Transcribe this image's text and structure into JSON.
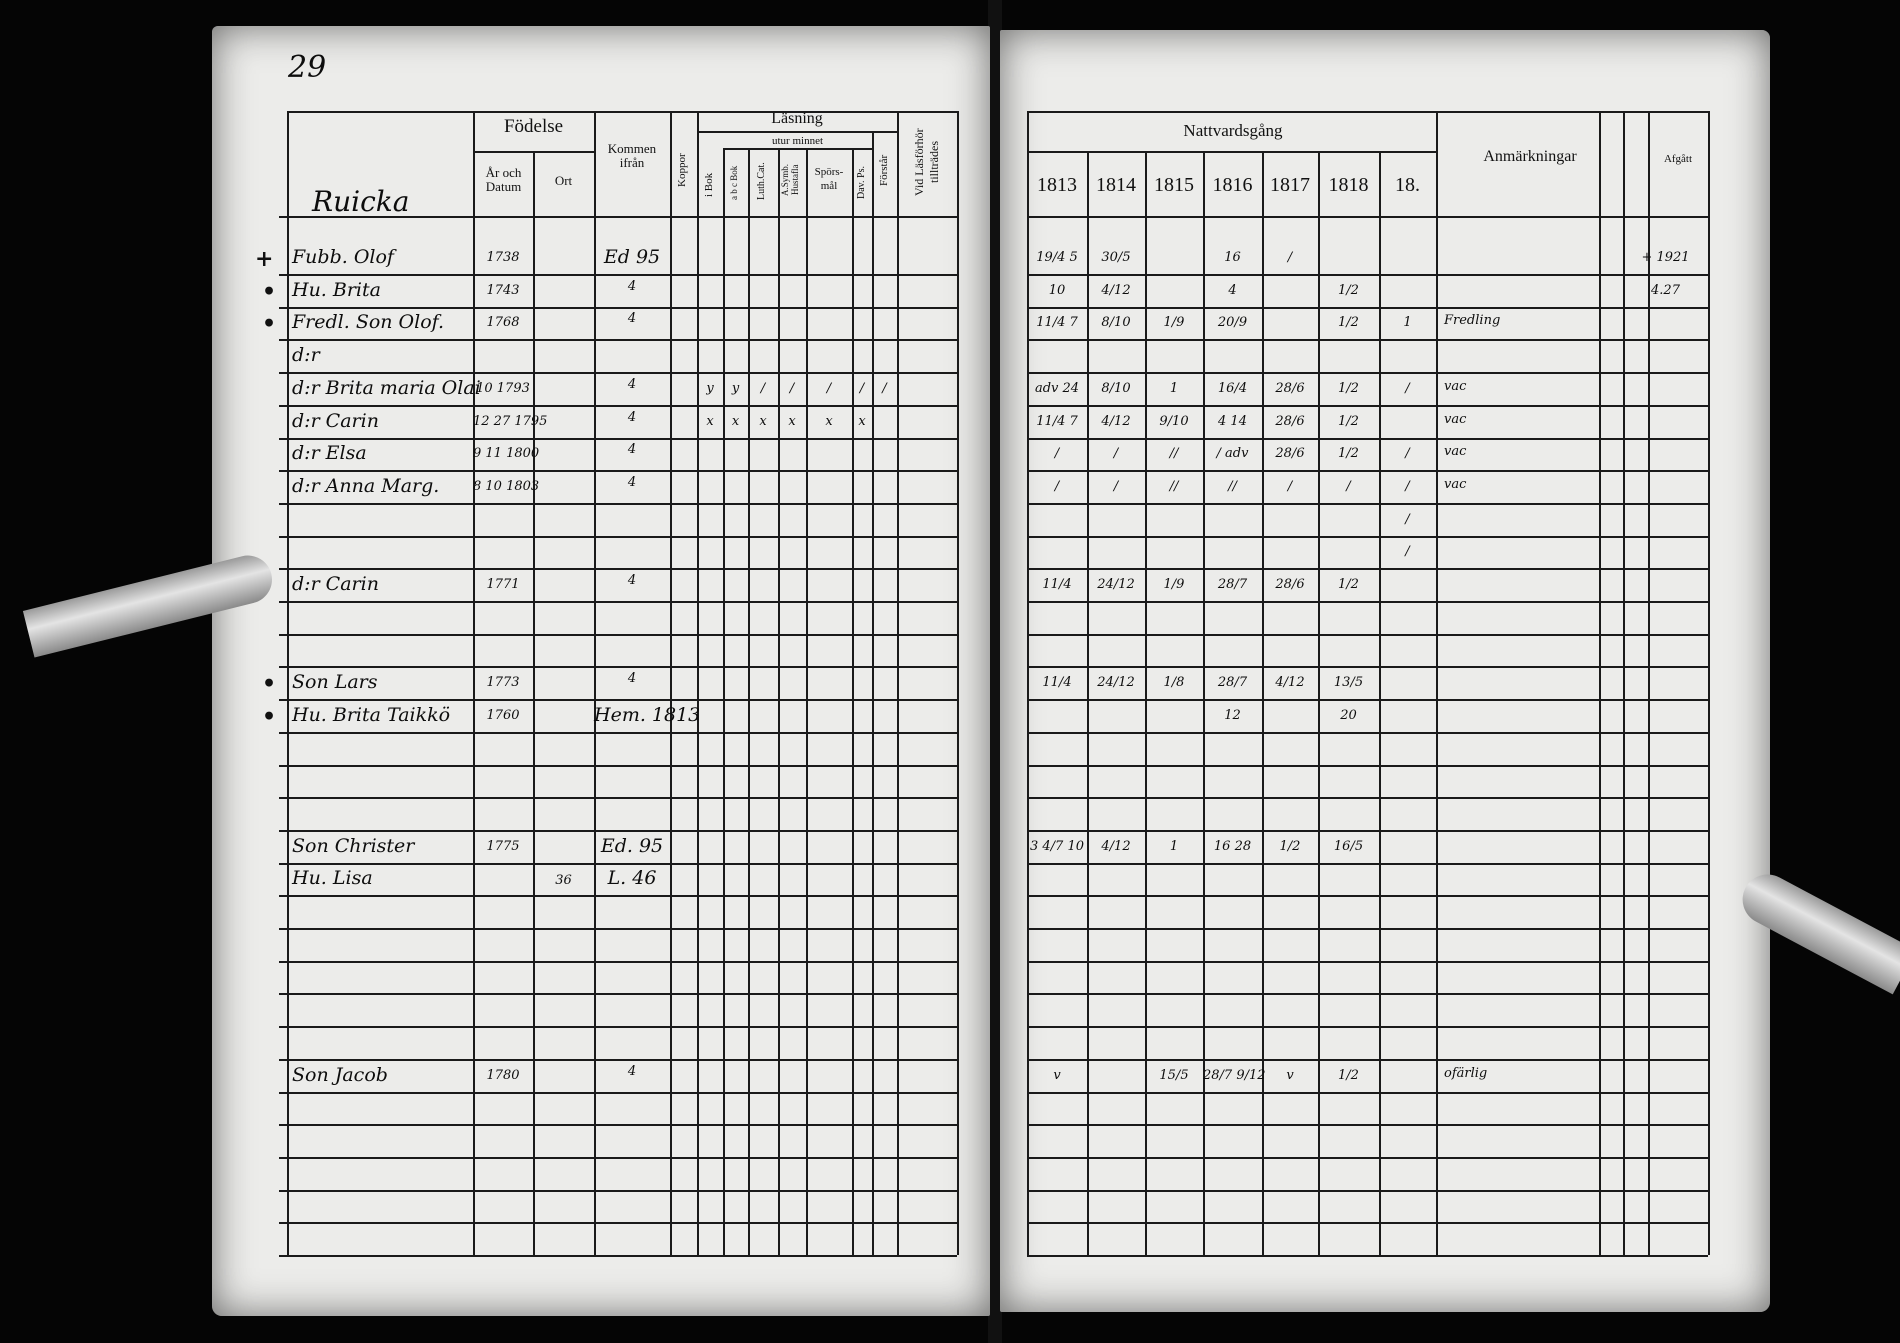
{
  "document": {
    "page_number": "29",
    "village": "Ruicka",
    "left_headers": {
      "name_col": "",
      "birth": "Födelse",
      "birth_year_date": "År och Datum",
      "birth_place": "Ort",
      "came_from": "Kommen ifrån",
      "smallpox": "Koppor",
      "reading": "Läsning",
      "by_heart": "utur minnet",
      "in_book": "i Bok",
      "abc_book": "a b c Bok",
      "catechism": "Luth.Cat.",
      "symbol": "A.Symb. Hustafla",
      "questions": "Spörs-mål",
      "psalms": "Dav. Ps.",
      "understanding": "Förstår",
      "admitted": "Vid Läsförhör tillträdes"
    },
    "right_headers": {
      "communion": "Nattvardsgång",
      "years": [
        "1813",
        "1814",
        "1815",
        "1816",
        "1817",
        "1818",
        "18."
      ],
      "remarks": "Anmärkningar",
      "departed": "Afgått"
    },
    "rows": [
      {
        "margin": "+",
        "name": "Fubb. Olof",
        "born": "1738",
        "place": "",
        "from": "Ed 95",
        "reading": [
          "",
          "",
          "",
          "",
          "",
          "",
          ""
        ],
        "communion": [
          "19/4 5",
          "30/5",
          "",
          "16",
          "/",
          "",
          ""
        ],
        "remarks": "",
        "departed": "+ 1921"
      },
      {
        "margin": "•",
        "name": "Hu. Brita",
        "born": "1743",
        "place": "",
        "from": "4",
        "reading": [
          "",
          "",
          "",
          "",
          "",
          "",
          ""
        ],
        "communion": [
          "10",
          "4/12",
          "",
          "4",
          "",
          "1/2",
          ""
        ],
        "remarks": "",
        "departed": "4.27"
      },
      {
        "margin": "•",
        "name": "Fredl. Son Olof.",
        "born": "1768",
        "place": "",
        "from": "4",
        "reading": [
          "",
          "",
          "",
          "",
          "",
          "",
          ""
        ],
        "communion": [
          "11/4 7",
          "8/10",
          "1/9",
          "20/9",
          "",
          "1/2",
          "1"
        ],
        "remarks": "Fredling",
        "departed": ""
      },
      {
        "margin": "",
        "name": "d:r",
        "born": "",
        "place": "",
        "from": "",
        "reading": [
          "",
          "",
          "",
          "",
          "",
          "",
          ""
        ],
        "communion": [
          "",
          "",
          "",
          "",
          "",
          "",
          ""
        ],
        "remarks": "",
        "departed": ""
      },
      {
        "margin": "",
        "name": "d:r Brita maria Olai",
        "born": "10 1793",
        "place": "",
        "from": "4",
        "reading": [
          "y",
          "y",
          "/",
          "/",
          "/",
          "/",
          "/"
        ],
        "communion": [
          "adv 24",
          "8/10",
          "1",
          "16/4",
          "28/6",
          "1/2",
          "/"
        ],
        "remarks": "vac",
        "departed": ""
      },
      {
        "margin": "",
        "name": "d:r Carin",
        "born": "12 27 1795",
        "place": "",
        "from": "4",
        "reading": [
          "x",
          "x",
          "x",
          "x",
          "x",
          "x",
          ""
        ],
        "communion": [
          "11/4 7",
          "4/12",
          "9/10",
          "4 14",
          "28/6",
          "1/2",
          ""
        ],
        "remarks": "vac",
        "departed": ""
      },
      {
        "margin": "",
        "name": "d:r Elsa",
        "born": "9 11 1800",
        "place": "",
        "from": "4",
        "reading": [
          "",
          "",
          "",
          "",
          "",
          "",
          ""
        ],
        "communion": [
          "/",
          "/",
          "//",
          "/ adv",
          "28/6",
          "1/2",
          "/"
        ],
        "remarks": "vac",
        "departed": ""
      },
      {
        "margin": "",
        "name": "d:r Anna Marg.",
        "born": "8 10 1803",
        "place": "",
        "from": "4",
        "reading": [
          "",
          "",
          "",
          "",
          "",
          "",
          ""
        ],
        "communion": [
          "/",
          "/",
          "//",
          "//",
          "/",
          "/",
          "/"
        ],
        "remarks": "vac",
        "departed": ""
      },
      {
        "margin": "",
        "name": "",
        "born": "",
        "place": "",
        "from": "",
        "reading": [
          "",
          "",
          "",
          "",
          "",
          "",
          ""
        ],
        "communion": [
          "",
          "",
          "",
          "",
          "",
          "",
          "/"
        ],
        "remarks": "",
        "departed": ""
      },
      {
        "margin": "",
        "name": "",
        "born": "",
        "place": "",
        "from": "",
        "reading": [
          "",
          "",
          "",
          "",
          "",
          "",
          ""
        ],
        "communion": [
          "",
          "",
          "",
          "",
          "",
          "",
          "/"
        ],
        "remarks": "",
        "departed": ""
      },
      {
        "margin": "",
        "name": "d:r Carin",
        "born": "1771",
        "place": "",
        "from": "4",
        "reading": [
          "",
          "",
          "",
          "",
          "",
          "",
          ""
        ],
        "communion": [
          "11/4",
          "24/12",
          "1/9",
          "28/7",
          "28/6",
          "1/2",
          ""
        ],
        "remarks": "",
        "departed": ""
      },
      {
        "margin": "",
        "name": "",
        "born": "",
        "place": "",
        "from": "",
        "reading": [
          "",
          "",
          "",
          "",
          "",
          "",
          ""
        ],
        "communion": [
          "",
          "",
          "",
          "",
          "",
          "",
          ""
        ],
        "remarks": "",
        "departed": ""
      },
      {
        "margin": "",
        "name": "",
        "born": "",
        "place": "",
        "from": "",
        "reading": [
          "",
          "",
          "",
          "",
          "",
          "",
          ""
        ],
        "communion": [
          "",
          "",
          "",
          "",
          "",
          "",
          ""
        ],
        "remarks": "",
        "departed": ""
      },
      {
        "margin": "•",
        "name": "Son Lars",
        "born": "1773",
        "place": "",
        "from": "4",
        "reading": [
          "",
          "",
          "",
          "",
          "",
          "",
          ""
        ],
        "communion": [
          "11/4",
          "24/12",
          "1/8",
          "28/7",
          "4/12",
          "13/5",
          ""
        ],
        "remarks": "",
        "departed": ""
      },
      {
        "margin": "•",
        "name": "Hu. Brita Taikkö",
        "born": "1760",
        "place": "",
        "from": "Hem. 1813",
        "reading": [
          "",
          "",
          "",
          "",
          "",
          "",
          ""
        ],
        "communion": [
          "",
          "",
          "",
          "12",
          "",
          "20",
          ""
        ],
        "remarks": "",
        "departed": ""
      },
      {
        "margin": "",
        "name": "",
        "born": "",
        "place": "",
        "from": "",
        "reading": [
          "",
          "",
          "",
          "",
          "",
          "",
          ""
        ],
        "communion": [
          "",
          "",
          "",
          "",
          "",
          "",
          ""
        ],
        "remarks": "",
        "departed": ""
      },
      {
        "margin": "",
        "name": "",
        "born": "",
        "place": "",
        "from": "",
        "reading": [
          "",
          "",
          "",
          "",
          "",
          "",
          ""
        ],
        "communion": [
          "",
          "",
          "",
          "",
          "",
          "",
          ""
        ],
        "remarks": "",
        "departed": ""
      },
      {
        "margin": "",
        "name": "",
        "born": "",
        "place": "",
        "from": "",
        "reading": [
          "",
          "",
          "",
          "",
          "",
          "",
          ""
        ],
        "communion": [
          "",
          "",
          "",
          "",
          "",
          "",
          ""
        ],
        "remarks": "",
        "departed": ""
      },
      {
        "margin": "",
        "name": "Son Christer",
        "born": "1775",
        "place": "",
        "from": "Ed. 95",
        "reading": [
          "",
          "",
          "",
          "",
          "",
          "",
          ""
        ],
        "communion": [
          "3 4/7 10",
          "4/12",
          "1",
          "16 28",
          "1/2",
          "16/5",
          ""
        ],
        "remarks": "",
        "departed": ""
      },
      {
        "margin": "",
        "name": "Hu. Lisa",
        "born": "",
        "place": "36",
        "from": "L. 46",
        "reading": [
          "",
          "",
          "",
          "",
          "",
          "",
          ""
        ],
        "communion": [
          "",
          "",
          "",
          "",
          "",
          "",
          ""
        ],
        "remarks": "",
        "departed": ""
      },
      {
        "margin": "",
        "name": "",
        "born": "",
        "place": "",
        "from": "",
        "reading": [
          "",
          "",
          "",
          "",
          "",
          "",
          ""
        ],
        "communion": [
          "",
          "",
          "",
          "",
          "",
          "",
          ""
        ],
        "remarks": "",
        "departed": ""
      },
      {
        "margin": "",
        "name": "",
        "born": "",
        "place": "",
        "from": "",
        "reading": [
          "",
          "",
          "",
          "",
          "",
          "",
          ""
        ],
        "communion": [
          "",
          "",
          "",
          "",
          "",
          "",
          ""
        ],
        "remarks": "",
        "departed": ""
      },
      {
        "margin": "",
        "name": "",
        "born": "",
        "place": "",
        "from": "",
        "reading": [
          "",
          "",
          "",
          "",
          "",
          "",
          ""
        ],
        "communion": [
          "",
          "",
          "",
          "",
          "",
          "",
          ""
        ],
        "remarks": "",
        "departed": ""
      },
      {
        "margin": "",
        "name": "",
        "born": "",
        "place": "",
        "from": "",
        "reading": [
          "",
          "",
          "",
          "",
          "",
          "",
          ""
        ],
        "communion": [
          "",
          "",
          "",
          "",
          "",
          "",
          ""
        ],
        "remarks": "",
        "departed": ""
      },
      {
        "margin": "",
        "name": "",
        "born": "",
        "place": "",
        "from": "",
        "reading": [
          "",
          "",
          "",
          "",
          "",
          "",
          ""
        ],
        "communion": [
          "",
          "",
          "",
          "",
          "",
          "",
          ""
        ],
        "remarks": "",
        "departed": ""
      },
      {
        "margin": "",
        "name": "Son Jacob",
        "born": "1780",
        "place": "",
        "from": "4",
        "reading": [
          "",
          "",
          "",
          "",
          "",
          "",
          ""
        ],
        "communion": [
          "v",
          "",
          "15/5",
          "28/7 9/12",
          "v",
          "1/2",
          ""
        ],
        "remarks": "ofärlig",
        "departed": ""
      },
      {
        "margin": "",
        "name": "",
        "born": "",
        "place": "",
        "from": "",
        "reading": [
          "",
          "",
          "",
          "",
          "",
          "",
          ""
        ],
        "communion": [
          "",
          "",
          "",
          "",
          "",
          "",
          ""
        ],
        "remarks": "",
        "departed": ""
      },
      {
        "margin": "",
        "name": "",
        "born": "",
        "place": "",
        "from": "",
        "reading": [
          "",
          "",
          "",
          "",
          "",
          "",
          ""
        ],
        "communion": [
          "",
          "",
          "",
          "",
          "",
          "",
          ""
        ],
        "remarks": "",
        "departed": ""
      },
      {
        "margin": "",
        "name": "",
        "born": "",
        "place": "",
        "from": "",
        "reading": [
          "",
          "",
          "",
          "",
          "",
          "",
          ""
        ],
        "communion": [
          "",
          "",
          "",
          "",
          "",
          "",
          ""
        ],
        "remarks": "",
        "departed": ""
      },
      {
        "margin": "",
        "name": "",
        "born": "",
        "place": "",
        "from": "",
        "reading": [
          "",
          "",
          "",
          "",
          "",
          "",
          ""
        ],
        "communion": [
          "",
          "",
          "",
          "",
          "",
          "",
          ""
        ],
        "remarks": "",
        "departed": ""
      },
      {
        "margin": "",
        "name": "",
        "born": "",
        "place": "",
        "from": "",
        "reading": [
          "",
          "",
          "",
          "",
          "",
          "",
          ""
        ],
        "communion": [
          "",
          "",
          "",
          "",
          "",
          "",
          ""
        ],
        "remarks": "",
        "departed": ""
      }
    ]
  }
}
